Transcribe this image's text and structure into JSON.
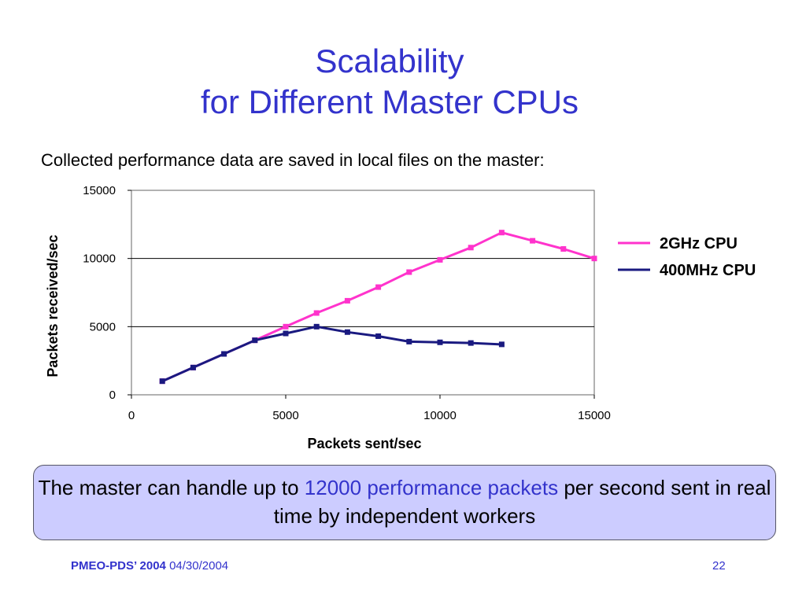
{
  "slide": {
    "title_line1": "Scalability",
    "title_line2": "for Different Master CPUs",
    "subtitle": "Collected performance data are saved in local files on the master:",
    "callout": {
      "text_before": "The master can handle up to ",
      "highlight": "12000 performance packets",
      "text_after": " per second sent in real time by independent workers"
    },
    "footer": {
      "conference": "PMEO-PDS’ 2004",
      "date": "04/30/2004",
      "page_number": "22"
    }
  },
  "colors": {
    "title": "#3333cc",
    "callout_bg": "#ccccff",
    "series_2ghz": "#ff33cc",
    "series_400mhz": "#1a1a80"
  },
  "chart_data": {
    "type": "line",
    "title": "",
    "xlabel": "Packets sent/sec",
    "ylabel": "Packets received/sec",
    "xlim": [
      0,
      15000
    ],
    "ylim": [
      0,
      15000
    ],
    "xticks": [
      "0",
      "5000",
      "10000",
      "15000"
    ],
    "yticks": [
      "0",
      "5000",
      "10000",
      "15000"
    ],
    "grid": "horizontal",
    "legend_position": "right",
    "series": [
      {
        "name": "2GHz CPU",
        "color": "#ff33cc",
        "x": [
          1000,
          2000,
          3000,
          4000,
          5000,
          6000,
          7000,
          8000,
          9000,
          10000,
          11000,
          12000,
          13000,
          14000,
          15000
        ],
        "y": [
          1000,
          2000,
          3000,
          4000,
          5000,
          6000,
          6900,
          7900,
          9000,
          9900,
          10800,
          11900,
          11300,
          10700,
          10000
        ]
      },
      {
        "name": "400MHz CPU",
        "color": "#1a1a80",
        "x": [
          1000,
          2000,
          3000,
          4000,
          5000,
          6000,
          7000,
          8000,
          9000,
          10000,
          11000,
          12000
        ],
        "y": [
          1000,
          2000,
          3000,
          4000,
          4500,
          5000,
          4600,
          4300,
          3900,
          3850,
          3800,
          3700
        ]
      }
    ]
  }
}
